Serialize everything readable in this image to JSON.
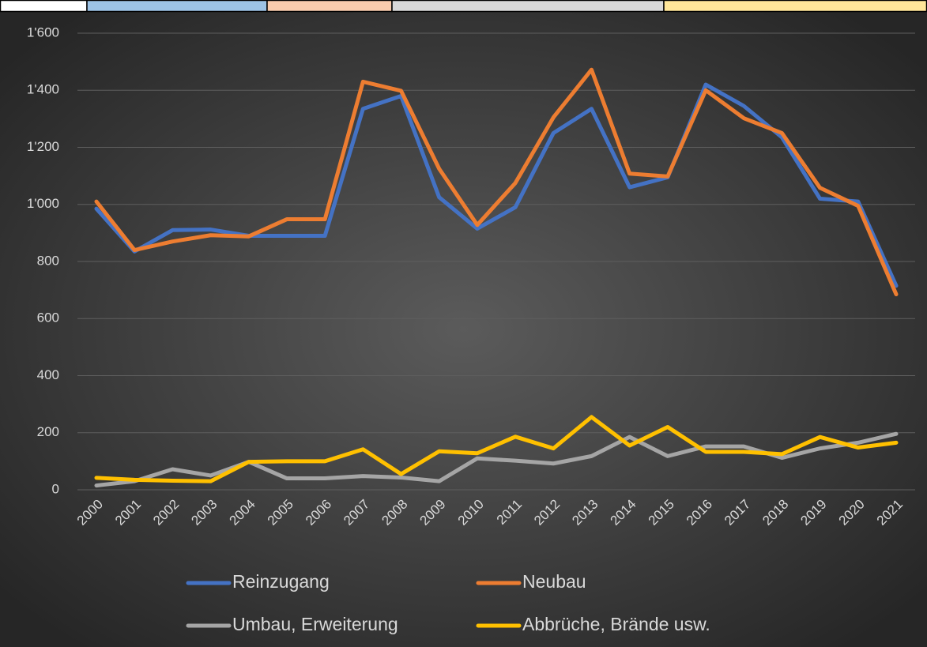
{
  "chart_data": {
    "type": "line",
    "categories": [
      "2000",
      "2001",
      "2002",
      "2003",
      "2004",
      "2005",
      "2006",
      "2007",
      "2008",
      "2009",
      "2010",
      "2011",
      "2012",
      "2013",
      "2014",
      "2015",
      "2016",
      "2017",
      "2018",
      "2019",
      "2020",
      "2021"
    ],
    "series": [
      {
        "name": "Reinzugang",
        "color": "#4472c4",
        "values": [
          985,
          835,
          910,
          912,
          890,
          890,
          890,
          1335,
          1380,
          1025,
          915,
          990,
          1250,
          1335,
          1060,
          1095,
          1420,
          1345,
          1235,
          1020,
          1010,
          715
        ]
      },
      {
        "name": "Neubau",
        "color": "#ed7d31",
        "values": [
          1010,
          840,
          870,
          892,
          888,
          948,
          948,
          1430,
          1398,
          1125,
          928,
          1075,
          1305,
          1472,
          1108,
          1098,
          1400,
          1302,
          1250,
          1058,
          995,
          685
        ]
      },
      {
        "name": "Umbau, Erweiterung",
        "color": "#a5a5a5",
        "values": [
          15,
          30,
          72,
          50,
          98,
          40,
          40,
          48,
          43,
          30,
          110,
          102,
          92,
          118,
          185,
          118,
          152,
          152,
          112,
          145,
          165,
          196
        ]
      },
      {
        "name": "Abbrüche, Brände usw.",
        "color": "#ffc000",
        "values": [
          42,
          35,
          32,
          30,
          98,
          100,
          100,
          142,
          55,
          135,
          128,
          186,
          145,
          255,
          155,
          220,
          133,
          133,
          125,
          185,
          148,
          165
        ]
      }
    ],
    "ylim": [
      0,
      1600
    ],
    "yticks": [
      0,
      200,
      400,
      600,
      800,
      {
        "value": 1000,
        "label": "1'000"
      },
      {
        "value": 1200,
        "label": "1'200"
      },
      {
        "value": 1400,
        "label": "1'400"
      },
      {
        "value": 1600,
        "label": "1'600"
      }
    ],
    "grid": true
  }
}
